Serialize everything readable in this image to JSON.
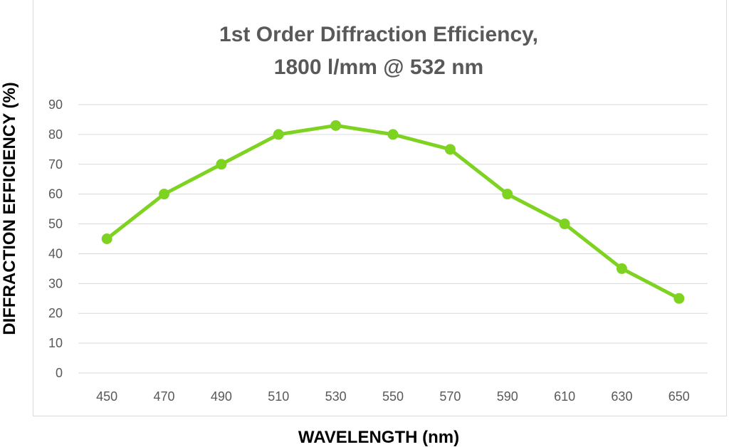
{
  "chart_data": {
    "type": "line",
    "title": [
      "1st Order Diffraction Efficiency,",
      "1800 l/mm @ 532 nm"
    ],
    "xlabel": "WAVELENGTH (nm)",
    "ylabel": "DIFFRACTION EFFICIENCY (%)",
    "categories": [
      "450",
      "470",
      "490",
      "510",
      "530",
      "550",
      "570",
      "590",
      "610",
      "630",
      "650"
    ],
    "series": [
      {
        "values": [
          45,
          60,
          70,
          80,
          83,
          80,
          75,
          60,
          50,
          35,
          25
        ],
        "color": "#7ed321"
      }
    ],
    "ylim": [
      0,
      90
    ],
    "yticks": [
      "0",
      "10",
      "20",
      "30",
      "40",
      "50",
      "60",
      "70",
      "80",
      "90"
    ],
    "grid": true,
    "legend": "none"
  }
}
